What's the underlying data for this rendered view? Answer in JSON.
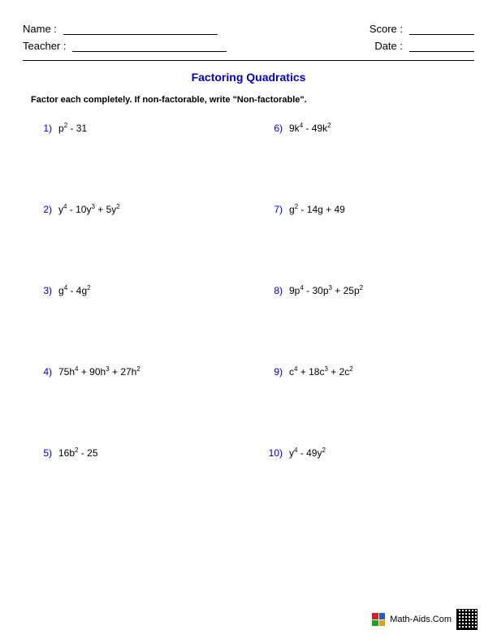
{
  "header": {
    "name_label": "Name :",
    "teacher_label": "Teacher :",
    "score_label": "Score :",
    "date_label": "Date :"
  },
  "title": "Factoring Quadratics",
  "instructions": "Factor each completely. If non-factorable, write \"Non-factorable\".",
  "problems": [
    {
      "num": "1)",
      "base1": "p",
      "exp1": "2",
      "rest": " - 31"
    },
    {
      "num": "6)",
      "pre": "9",
      "base1": "k",
      "exp1": "4",
      "mid": " - 49",
      "base2": "k",
      "exp2": "2"
    },
    {
      "num": "2)",
      "base1": "y",
      "exp1": "4",
      "mid": " - 10",
      "base2": "y",
      "exp2": "3",
      "mid2": " + 5",
      "base3": "y",
      "exp3": "2"
    },
    {
      "num": "7)",
      "base1": "g",
      "exp1": "2",
      "rest": " - 14g + 49"
    },
    {
      "num": "3)",
      "base1": "g",
      "exp1": "4",
      "mid": " - 4",
      "base2": "g",
      "exp2": "2"
    },
    {
      "num": "8)",
      "pre": "9",
      "base1": "p",
      "exp1": "4",
      "mid": " - 30",
      "base2": "p",
      "exp2": "3",
      "mid2": " + 25",
      "base3": "p",
      "exp3": "2"
    },
    {
      "num": "4)",
      "pre": "75",
      "base1": "h",
      "exp1": "4",
      "mid": " + 90",
      "base2": "h",
      "exp2": "3",
      "mid2": " + 27",
      "base3": "h",
      "exp3": "2"
    },
    {
      "num": "9)",
      "base1": "c",
      "exp1": "4",
      "mid": " + 18",
      "base2": "c",
      "exp2": "3",
      "mid2": " + 2",
      "base3": "c",
      "exp3": "2"
    },
    {
      "num": "5)",
      "pre": "16",
      "base1": "b",
      "exp1": "2",
      "rest": " - 25"
    },
    {
      "num": "10)",
      "base1": "y",
      "exp1": "4",
      "mid": " - 49",
      "base2": "y",
      "exp2": "2"
    }
  ],
  "footer": {
    "site": "Math-Aids.Com"
  },
  "colors": {
    "link_blue": "#0000cc",
    "text": "#000000",
    "background": "#ffffff"
  }
}
